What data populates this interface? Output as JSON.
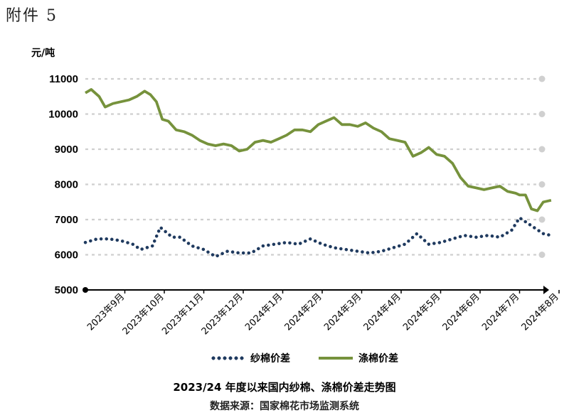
{
  "attachment_label": "附件 5",
  "chart_data": {
    "type": "line",
    "title": "2023/24 年度以来国内纱棉、涤棉价差走势图",
    "source": "数据来源：国家棉花市场监测系统",
    "ylabel": "元/吨",
    "ylim": [
      5000,
      11000
    ],
    "yticks": [
      5000,
      6000,
      7000,
      8000,
      9000,
      10000,
      11000
    ],
    "grid": true,
    "legend": "bottom",
    "categories": [
      "2023年9月",
      "2023年10月",
      "2023年11月",
      "2023年12月",
      "2024年1月",
      "2024年2月",
      "2024年3月",
      "2024年4月",
      "2024年5月",
      "2024年6月",
      "2024年7月",
      "2024年8月"
    ],
    "x_range": [
      0,
      11.8
    ],
    "series": [
      {
        "name": "纱棉价差",
        "style": "dotted",
        "color": "#1f3a5f",
        "x": [
          0,
          0.3,
          0.6,
          0.9,
          1.2,
          1.4,
          1.7,
          1.9,
          2.2,
          2.4,
          2.7,
          3.0,
          3.3,
          3.6,
          3.9,
          4.2,
          4.5,
          4.8,
          5.1,
          5.4,
          5.7,
          6.0,
          6.3,
          6.6,
          6.9,
          7.2,
          7.5,
          7.8,
          8.1,
          8.4,
          8.7,
          9.0,
          9.3,
          9.6,
          9.9,
          10.2,
          10.5,
          10.8,
          11.0,
          11.2,
          11.4,
          11.6,
          11.8
        ],
        "values": [
          6350,
          6450,
          6450,
          6400,
          6300,
          6150,
          6250,
          6780,
          6500,
          6500,
          6250,
          6150,
          5950,
          6100,
          6050,
          6050,
          6250,
          6300,
          6350,
          6300,
          6450,
          6300,
          6200,
          6150,
          6100,
          6050,
          6100,
          6200,
          6300,
          6600,
          6300,
          6350,
          6450,
          6550,
          6500,
          6550,
          6500,
          6700,
          7050,
          6900,
          6750,
          6600,
          6550
        ]
      },
      {
        "name": "涤棉价差",
        "style": "solid",
        "color": "#76923c",
        "x": [
          0,
          0.15,
          0.35,
          0.5,
          0.7,
          0.9,
          1.1,
          1.3,
          1.5,
          1.65,
          1.8,
          1.95,
          2.1,
          2.3,
          2.5,
          2.7,
          2.9,
          3.1,
          3.3,
          3.5,
          3.7,
          3.9,
          4.1,
          4.3,
          4.5,
          4.7,
          4.9,
          5.1,
          5.3,
          5.5,
          5.7,
          5.9,
          6.1,
          6.3,
          6.5,
          6.7,
          6.9,
          7.1,
          7.3,
          7.5,
          7.7,
          7.9,
          8.1,
          8.3,
          8.5,
          8.7,
          8.9,
          9.1,
          9.3,
          9.5,
          9.7,
          9.9,
          10.1,
          10.3,
          10.5,
          10.7,
          10.9,
          11.0,
          11.15,
          11.3,
          11.45,
          11.6,
          11.8
        ],
        "values": [
          10600,
          10700,
          10500,
          10200,
          10300,
          10350,
          10400,
          10500,
          10650,
          10550,
          10350,
          9850,
          9800,
          9550,
          9500,
          9400,
          9250,
          9150,
          9100,
          9150,
          9100,
          8950,
          9000,
          9200,
          9250,
          9200,
          9300,
          9400,
          9550,
          9550,
          9500,
          9700,
          9800,
          9900,
          9700,
          9700,
          9650,
          9750,
          9600,
          9500,
          9300,
          9250,
          9200,
          8800,
          8900,
          9050,
          8850,
          8800,
          8600,
          8200,
          7950,
          7900,
          7850,
          7900,
          7950,
          7800,
          7750,
          7700,
          7700,
          7300,
          7250,
          7500,
          7550
        ]
      }
    ]
  }
}
